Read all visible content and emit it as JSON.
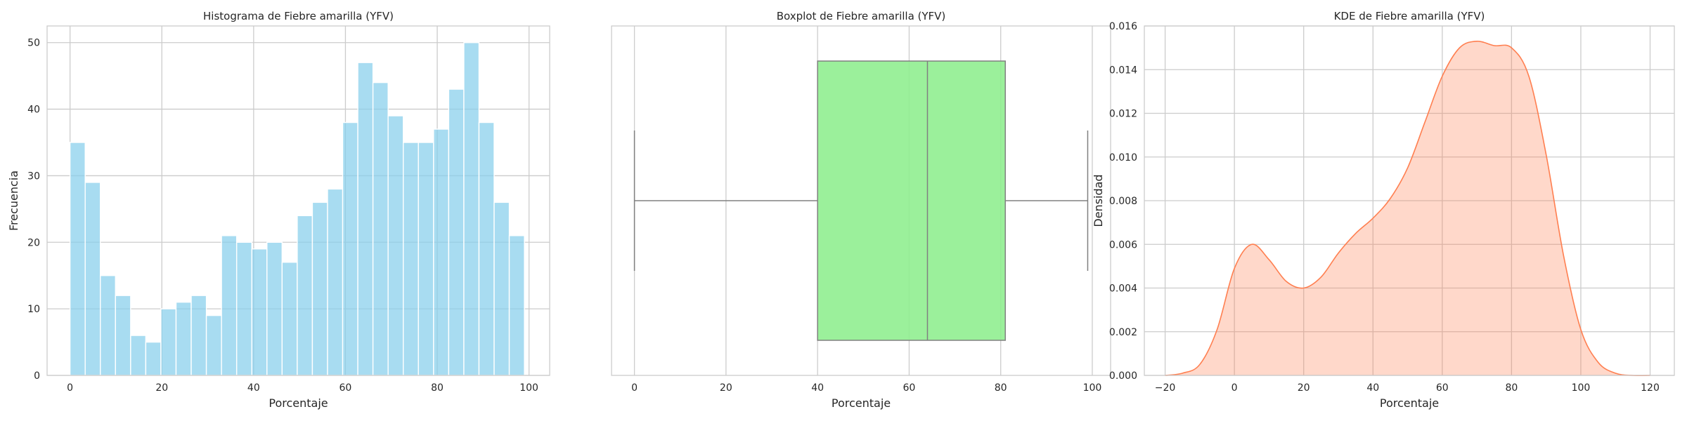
{
  "chart_data": [
    {
      "type": "bar",
      "title": "Histograma de Fiebre amarilla (YFV)",
      "xlabel": "Porcentaje",
      "ylabel": "Frecuencia",
      "xlim": [
        -5,
        104.5
      ],
      "ylim": [
        0,
        52.5
      ],
      "xticks": [
        "0",
        "20",
        "40",
        "60",
        "80",
        "100"
      ],
      "yticks": [
        "0",
        "10",
        "20",
        "30",
        "40",
        "50"
      ],
      "bin_start": 0,
      "bin_width": 3.3,
      "values": [
        35,
        29,
        15,
        12,
        6,
        5,
        10,
        11,
        12,
        9,
        21,
        20,
        19,
        20,
        17,
        24,
        26,
        28,
        38,
        47,
        44,
        39,
        35,
        35,
        37,
        43,
        50,
        38,
        26,
        21
      ],
      "color": "#87ceeb",
      "grid": true
    },
    {
      "type": "box",
      "title": "Boxplot de Fiebre amarilla (YFV)",
      "xlabel": "Porcentaje",
      "xlim": [
        -5,
        104
      ],
      "xticks": [
        "0",
        "20",
        "40",
        "60",
        "80",
        "100"
      ],
      "whisker_low": 0,
      "q1": 40,
      "median": 64,
      "q3": 81,
      "whisker_high": 99,
      "color": "#90ee90",
      "line_color": "#808080",
      "grid": true
    },
    {
      "type": "area",
      "title": "KDE de Fiebre amarilla (YFV)",
      "xlabel": "Porcentaje",
      "ylabel": "Densidad",
      "xlim": [
        -26,
        127
      ],
      "ylim": [
        0,
        0.016
      ],
      "xticks": [
        "−20",
        "0",
        "20",
        "40",
        "60",
        "80",
        "100",
        "120"
      ],
      "yticks": [
        "0.000",
        "0.002",
        "0.004",
        "0.006",
        "0.008",
        "0.010",
        "0.012",
        "0.014",
        "0.016"
      ],
      "x": [
        -20,
        -15,
        -10,
        -5,
        0,
        5,
        10,
        15,
        20,
        25,
        30,
        35,
        40,
        45,
        50,
        55,
        60,
        65,
        70,
        75,
        80,
        85,
        90,
        95,
        100,
        105,
        110,
        115,
        120
      ],
      "y": [
        0.0,
        0.0001,
        0.0005,
        0.0021,
        0.0049,
        0.006,
        0.0053,
        0.0043,
        0.004,
        0.0045,
        0.0056,
        0.0065,
        0.0072,
        0.0081,
        0.0095,
        0.0116,
        0.0137,
        0.015,
        0.0153,
        0.0151,
        0.015,
        0.0137,
        0.0101,
        0.0055,
        0.0021,
        0.0006,
        0.0001,
        0.0,
        0.0
      ],
      "color": "#ff7f50",
      "grid": true
    }
  ]
}
